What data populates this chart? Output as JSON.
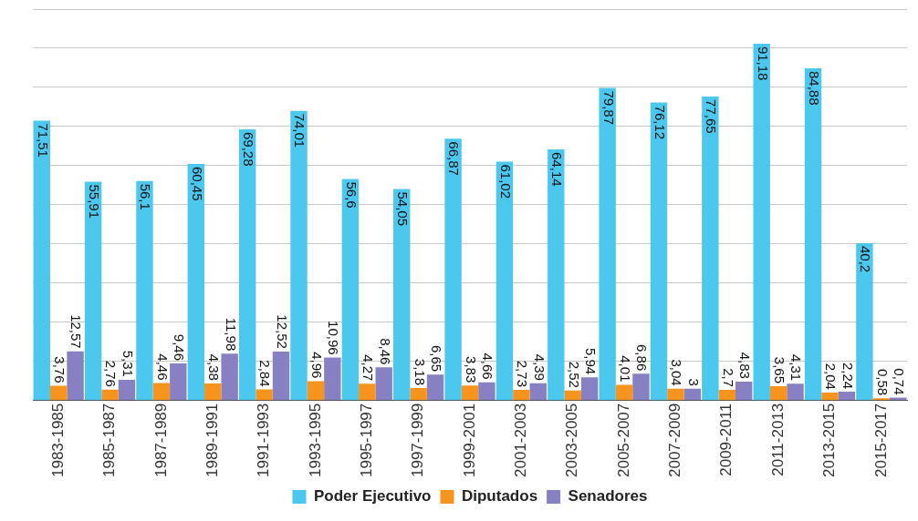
{
  "chart_data": {
    "type": "bar",
    "categories": [
      "1983-1985",
      "1985-1987",
      "1987-1989",
      "1989-1991",
      "1991-1993",
      "1993-1995",
      "1995-1997",
      "1997-1999",
      "1999-2001",
      "2001-2003",
      "2003-2005",
      "2005-2007",
      "2007-2009",
      "2009-2011",
      "2011-2013",
      "2013-2015",
      "2015-2017"
    ],
    "series": [
      {
        "name": "Poder Ejecutivo",
        "color": "#4cc8ef",
        "values": [
          71.51,
          55.91,
          56.1,
          60.45,
          69.28,
          74.01,
          56.6,
          54.05,
          66.87,
          61.02,
          64.14,
          79.87,
          76.12,
          77.65,
          91.18,
          84.88,
          40.2
        ],
        "value_labels": [
          "71,51",
          "55,91",
          "56,1",
          "60,45",
          "69,28",
          "74,01",
          "56,6",
          "54,05",
          "66,87",
          "61,02",
          "64,14",
          "79,87",
          "76,12",
          "77,65",
          "91,18",
          "84,88",
          "40,2"
        ]
      },
      {
        "name": "Diputados",
        "color": "#f7941d",
        "values": [
          3.76,
          2.76,
          4.46,
          4.38,
          2.84,
          4.96,
          4.27,
          3.18,
          3.83,
          2.73,
          2.52,
          4.01,
          3.04,
          2.7,
          3.65,
          2.04,
          0.58
        ],
        "value_labels": [
          "3,76",
          "2,76",
          "4,46",
          "4,38",
          "2,84",
          "4,96",
          "4,27",
          "3,18",
          "3,83",
          "2,73",
          "2,52",
          "4,01",
          "3,04",
          "2,7",
          "3,65",
          "2,04",
          "0,58"
        ]
      },
      {
        "name": "Senadores",
        "color": "#8781c3",
        "values": [
          12.57,
          5.31,
          9.46,
          11.98,
          12.52,
          10.96,
          8.46,
          6.65,
          4.66,
          4.39,
          5.94,
          6.86,
          3,
          4.83,
          4.31,
          2.24,
          0.74
        ],
        "value_labels": [
          "12,57",
          "5,31",
          "9,46",
          "11,98",
          "12,52",
          "10,96",
          "8,46",
          "6,65",
          "4,66",
          "4,39",
          "5,94",
          "6,86",
          "3",
          "4,83",
          "4,31",
          "2,24",
          "0,74"
        ]
      }
    ],
    "ylim": [
      0,
      100
    ],
    "yticks": [
      {
        "value": 0,
        "label": null
      },
      {
        "value": 10,
        "label": null
      },
      {
        "value": 20,
        "label": null
      },
      {
        "value": 30,
        "label": null
      },
      {
        "value": 40,
        "label": null
      },
      {
        "value": 50,
        "label": null
      },
      {
        "value": 60,
        "label": null
      },
      {
        "value": 70,
        "label": null
      },
      {
        "value": 80,
        "label": null
      },
      {
        "value": 90,
        "label": null
      },
      {
        "value": 100,
        "label": null
      }
    ],
    "grid": "y",
    "tick_labels": "x",
    "legend": "bottom"
  }
}
